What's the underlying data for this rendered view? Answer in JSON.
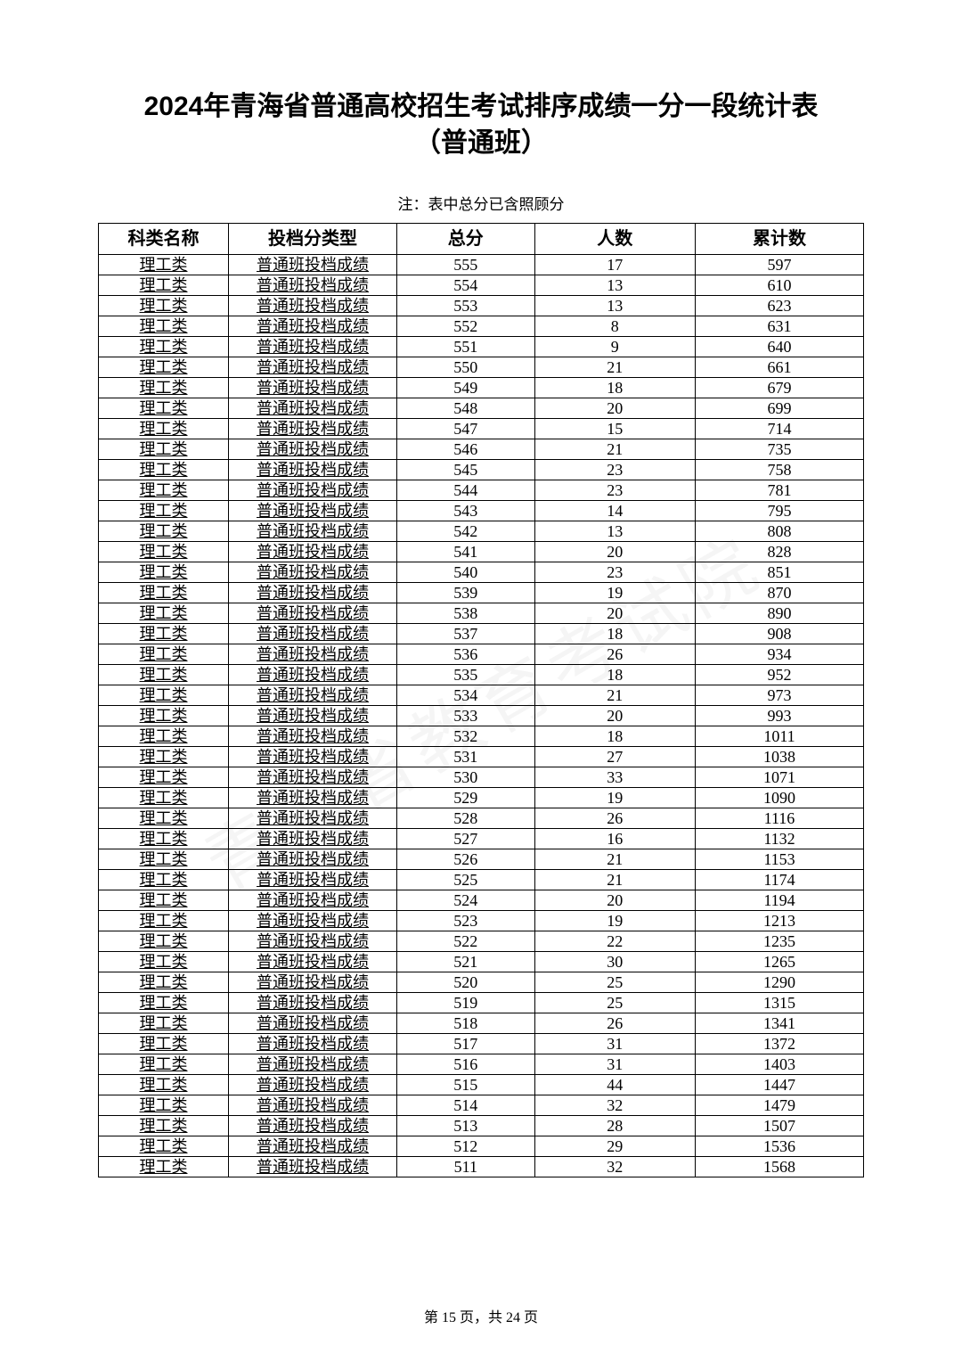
{
  "document": {
    "title_line1": "2024年青海省普通高校招生考试排序成绩一分一段统计表",
    "title_line2": "（普通班）",
    "note": "注：表中总分已含照顾分",
    "footer": "第 15 页，共 24 页",
    "watermark": "青海省教育考试院"
  },
  "table": {
    "type": "table",
    "background_color": "#ffffff",
    "border_color": "#000000",
    "header_fontsize": 20,
    "cell_fontsize": 18,
    "col_widths_pct": [
      17,
      22,
      18,
      21,
      22
    ],
    "columns": [
      "科类名称",
      "投档分类型",
      "总分",
      "人数",
      "累计数"
    ],
    "rows": [
      [
        "理工类",
        "普通班投档成绩",
        "555",
        "17",
        "597"
      ],
      [
        "理工类",
        "普通班投档成绩",
        "554",
        "13",
        "610"
      ],
      [
        "理工类",
        "普通班投档成绩",
        "553",
        "13",
        "623"
      ],
      [
        "理工类",
        "普通班投档成绩",
        "552",
        "8",
        "631"
      ],
      [
        "理工类",
        "普通班投档成绩",
        "551",
        "9",
        "640"
      ],
      [
        "理工类",
        "普通班投档成绩",
        "550",
        "21",
        "661"
      ],
      [
        "理工类",
        "普通班投档成绩",
        "549",
        "18",
        "679"
      ],
      [
        "理工类",
        "普通班投档成绩",
        "548",
        "20",
        "699"
      ],
      [
        "理工类",
        "普通班投档成绩",
        "547",
        "15",
        "714"
      ],
      [
        "理工类",
        "普通班投档成绩",
        "546",
        "21",
        "735"
      ],
      [
        "理工类",
        "普通班投档成绩",
        "545",
        "23",
        "758"
      ],
      [
        "理工类",
        "普通班投档成绩",
        "544",
        "23",
        "781"
      ],
      [
        "理工类",
        "普通班投档成绩",
        "543",
        "14",
        "795"
      ],
      [
        "理工类",
        "普通班投档成绩",
        "542",
        "13",
        "808"
      ],
      [
        "理工类",
        "普通班投档成绩",
        "541",
        "20",
        "828"
      ],
      [
        "理工类",
        "普通班投档成绩",
        "540",
        "23",
        "851"
      ],
      [
        "理工类",
        "普通班投档成绩",
        "539",
        "19",
        "870"
      ],
      [
        "理工类",
        "普通班投档成绩",
        "538",
        "20",
        "890"
      ],
      [
        "理工类",
        "普通班投档成绩",
        "537",
        "18",
        "908"
      ],
      [
        "理工类",
        "普通班投档成绩",
        "536",
        "26",
        "934"
      ],
      [
        "理工类",
        "普通班投档成绩",
        "535",
        "18",
        "952"
      ],
      [
        "理工类",
        "普通班投档成绩",
        "534",
        "21",
        "973"
      ],
      [
        "理工类",
        "普通班投档成绩",
        "533",
        "20",
        "993"
      ],
      [
        "理工类",
        "普通班投档成绩",
        "532",
        "18",
        "1011"
      ],
      [
        "理工类",
        "普通班投档成绩",
        "531",
        "27",
        "1038"
      ],
      [
        "理工类",
        "普通班投档成绩",
        "530",
        "33",
        "1071"
      ],
      [
        "理工类",
        "普通班投档成绩",
        "529",
        "19",
        "1090"
      ],
      [
        "理工类",
        "普通班投档成绩",
        "528",
        "26",
        "1116"
      ],
      [
        "理工类",
        "普通班投档成绩",
        "527",
        "16",
        "1132"
      ],
      [
        "理工类",
        "普通班投档成绩",
        "526",
        "21",
        "1153"
      ],
      [
        "理工类",
        "普通班投档成绩",
        "525",
        "21",
        "1174"
      ],
      [
        "理工类",
        "普通班投档成绩",
        "524",
        "20",
        "1194"
      ],
      [
        "理工类",
        "普通班投档成绩",
        "523",
        "19",
        "1213"
      ],
      [
        "理工类",
        "普通班投档成绩",
        "522",
        "22",
        "1235"
      ],
      [
        "理工类",
        "普通班投档成绩",
        "521",
        "30",
        "1265"
      ],
      [
        "理工类",
        "普通班投档成绩",
        "520",
        "25",
        "1290"
      ],
      [
        "理工类",
        "普通班投档成绩",
        "519",
        "25",
        "1315"
      ],
      [
        "理工类",
        "普通班投档成绩",
        "518",
        "26",
        "1341"
      ],
      [
        "理工类",
        "普通班投档成绩",
        "517",
        "31",
        "1372"
      ],
      [
        "理工类",
        "普通班投档成绩",
        "516",
        "31",
        "1403"
      ],
      [
        "理工类",
        "普通班投档成绩",
        "515",
        "44",
        "1447"
      ],
      [
        "理工类",
        "普通班投档成绩",
        "514",
        "32",
        "1479"
      ],
      [
        "理工类",
        "普通班投档成绩",
        "513",
        "28",
        "1507"
      ],
      [
        "理工类",
        "普通班投档成绩",
        "512",
        "29",
        "1536"
      ],
      [
        "理工类",
        "普通班投档成绩",
        "511",
        "32",
        "1568"
      ]
    ]
  }
}
